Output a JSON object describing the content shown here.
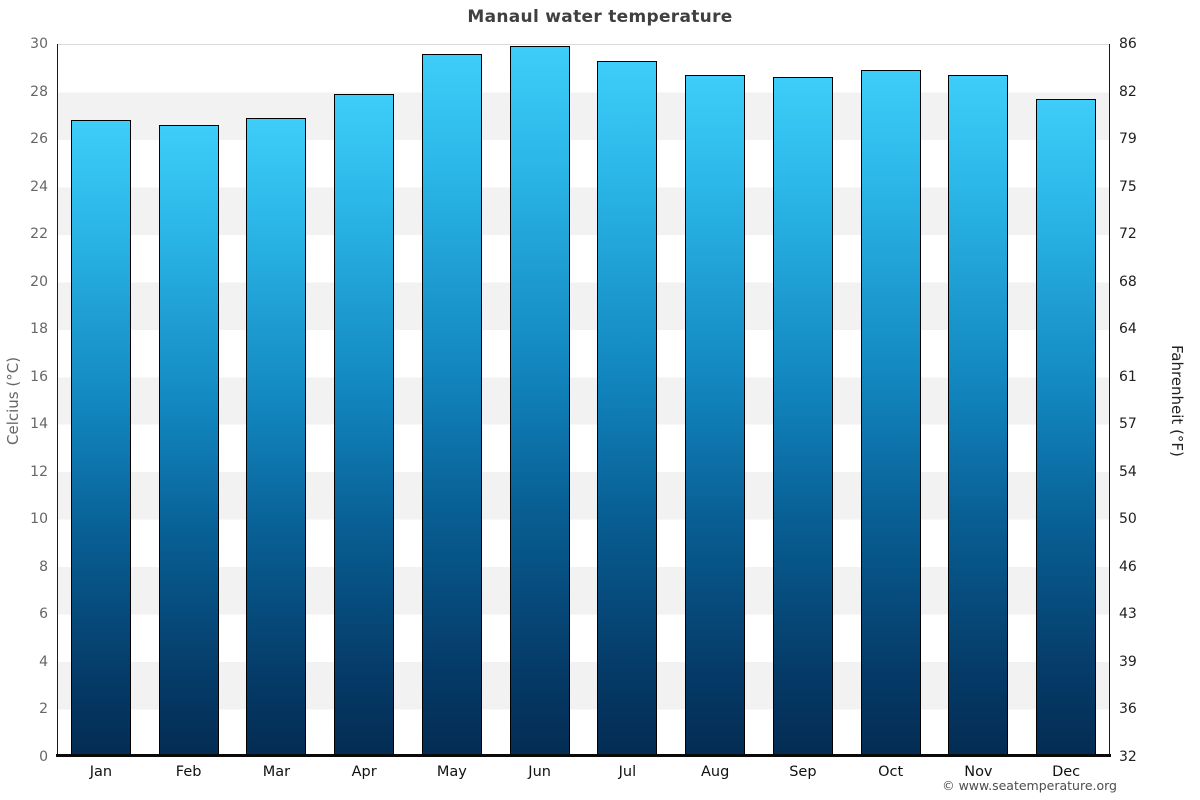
{
  "chart_data": {
    "type": "bar",
    "title": "Manaul water temperature",
    "categories": [
      "Jan",
      "Feb",
      "Mar",
      "Apr",
      "May",
      "Jun",
      "Jul",
      "Aug",
      "Sep",
      "Oct",
      "Nov",
      "Dec"
    ],
    "values": [
      26.8,
      26.6,
      26.9,
      27.9,
      29.6,
      29.9,
      29.3,
      28.7,
      28.6,
      28.9,
      28.7,
      27.7
    ],
    "ylabel_left": "Celcius (°C)",
    "ylabel_right": "Fahrenheit (°F)",
    "ylim_celsius": [
      0,
      30
    ],
    "ylim_fahrenheit": [
      32,
      86
    ],
    "celsius_ticks": [
      30,
      28,
      26,
      24,
      22,
      20,
      18,
      16,
      14,
      12,
      10,
      8,
      6,
      4,
      2,
      0
    ],
    "fahrenheit_ticks": [
      86,
      82,
      79,
      75,
      72,
      68,
      64,
      61,
      57,
      54,
      50,
      46,
      43,
      39,
      36,
      32
    ],
    "legend": "none",
    "grid": "alternating horizontal bands every 2°C",
    "band_color_light": "#ffffff",
    "band_color_dark": "#f2f2f2",
    "bar_color_top": "#3ecdf8",
    "bar_color_bottom": "#032c52",
    "bar_border_color": "#000000"
  },
  "footer": {
    "copyright": "© www.seatemperature.org"
  }
}
